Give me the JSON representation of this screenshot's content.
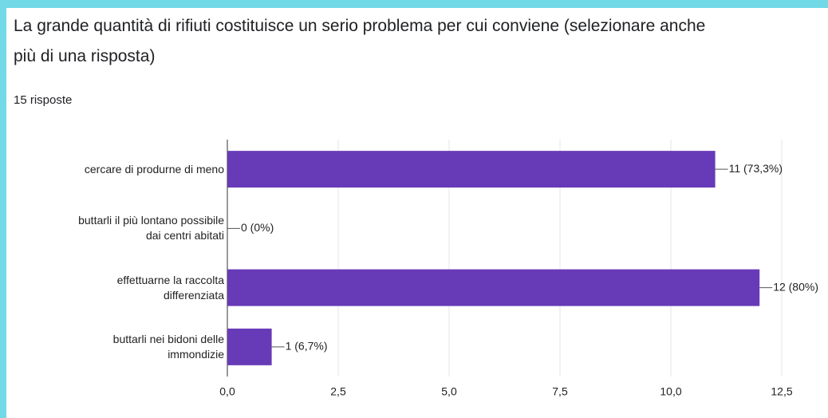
{
  "title": "La grande quantità di rifiuti costituisce un serio problema per cui conviene (selezionare anche più di una risposta)",
  "response_count": "15 risposte",
  "chart_data": {
    "type": "hbar",
    "categories": [
      "cercare di produrne di meno",
      "buttarli il più lontano possibile dai centri abitati",
      "effettuarne la raccolta differenziata",
      "buttarli nei bidoni delle immondizie"
    ],
    "values": [
      11,
      0,
      12,
      1
    ],
    "value_labels": [
      "11 (73,3%)",
      "0 (0%)",
      "12 (80%)",
      "1 (6,7%)"
    ],
    "color": "#673ab7",
    "xlim": [
      0,
      12.5
    ],
    "xticks": [
      {
        "value": 0,
        "label": "0,0"
      },
      {
        "value": 2.5,
        "label": "2,5"
      },
      {
        "value": 5,
        "label": "5,0"
      },
      {
        "value": 7.5,
        "label": "7,5"
      },
      {
        "value": 10,
        "label": "10,0"
      },
      {
        "value": 12.5,
        "label": "12,5"
      }
    ],
    "grid": true
  }
}
